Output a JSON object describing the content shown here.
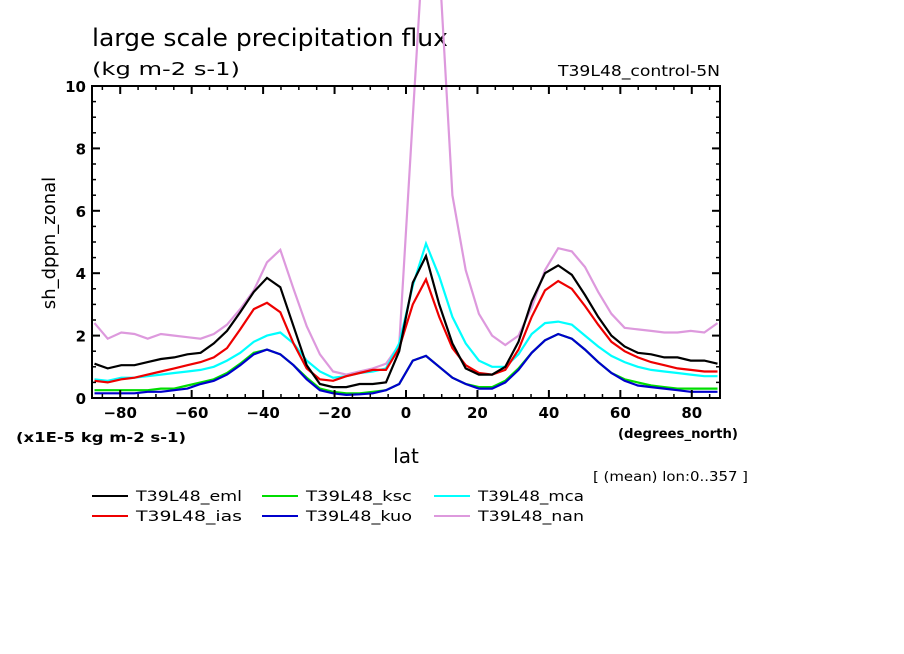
{
  "chart_data": {
    "type": "line",
    "title": "large scale precipitation flux",
    "subtitle": "(kg m-2 s-1)",
    "experiment_label": "T39L48_control-5N",
    "xlabel": "lat",
    "xunits": "(degrees_north)",
    "ylabel": "sh_dppn_zonal",
    "yscale_note": "(x1E-5 kg m-2 s-1)",
    "footnote": "[ (mean) lon:0..357 ]",
    "xlim": [
      -87.9,
      87.9
    ],
    "ylim": [
      0,
      10
    ],
    "xticks": [
      -80,
      -60,
      -40,
      -20,
      0,
      20,
      40,
      60,
      80
    ],
    "xtick_labels": [
      "-80",
      "-60",
      "-40",
      "-20",
      "0",
      "20",
      "40",
      "60",
      "80"
    ],
    "yticks": [
      0,
      2,
      4,
      6,
      8,
      10
    ],
    "ytick_labels": [
      "0",
      "2",
      "4",
      "6",
      "8",
      "10"
    ],
    "grid": false,
    "legend_position": "below-left",
    "x": [
      -87.2,
      -83.5,
      -79.7,
      -76.0,
      -72.3,
      -68.6,
      -64.9,
      -61.2,
      -57.5,
      -53.8,
      -50.1,
      -46.4,
      -42.6,
      -38.9,
      -35.2,
      -31.5,
      -27.8,
      -24.1,
      -20.4,
      -16.7,
      -13.0,
      -9.3,
      -5.6,
      -1.9,
      1.9,
      5.6,
      9.3,
      13.0,
      16.7,
      20.4,
      24.1,
      27.8,
      31.5,
      35.2,
      38.9,
      42.6,
      46.4,
      50.1,
      53.8,
      57.5,
      61.2,
      64.9,
      68.6,
      72.3,
      76.0,
      79.7,
      83.5,
      87.2
    ],
    "series": [
      {
        "name": "T39L48_eml",
        "color": "#000000",
        "values": [
          1.1,
          0.95,
          1.05,
          1.05,
          1.15,
          1.25,
          1.3,
          1.4,
          1.45,
          1.75,
          2.15,
          2.75,
          3.4,
          3.85,
          3.55,
          2.3,
          1.05,
          0.45,
          0.35,
          0.35,
          0.45,
          0.45,
          0.5,
          1.5,
          3.7,
          4.55,
          3.0,
          1.75,
          0.95,
          0.75,
          0.75,
          1.0,
          1.8,
          3.1,
          4.0,
          4.25,
          3.95,
          3.3,
          2.6,
          2.0,
          1.65,
          1.45,
          1.4,
          1.3,
          1.3,
          1.2,
          1.2,
          1.1
        ]
      },
      {
        "name": "T39L48_ias",
        "color": "#ee0000",
        "values": [
          0.55,
          0.5,
          0.6,
          0.65,
          0.75,
          0.85,
          0.95,
          1.05,
          1.15,
          1.3,
          1.6,
          2.2,
          2.85,
          3.05,
          2.75,
          1.75,
          0.95,
          0.6,
          0.55,
          0.7,
          0.8,
          0.9,
          0.9,
          1.6,
          3.0,
          3.8,
          2.6,
          1.6,
          1.05,
          0.8,
          0.75,
          0.9,
          1.55,
          2.6,
          3.45,
          3.75,
          3.5,
          2.95,
          2.35,
          1.8,
          1.5,
          1.3,
          1.15,
          1.05,
          0.95,
          0.9,
          0.85,
          0.85
        ]
      },
      {
        "name": "T39L48_ksc",
        "color": "#00dd00",
        "values": [
          0.25,
          0.25,
          0.25,
          0.25,
          0.25,
          0.3,
          0.3,
          0.4,
          0.5,
          0.6,
          0.8,
          1.1,
          1.45,
          1.55,
          1.4,
          1.05,
          0.65,
          0.3,
          0.2,
          0.15,
          0.15,
          0.2,
          0.25,
          0.45,
          1.2,
          1.35,
          1.0,
          0.65,
          0.45,
          0.35,
          0.35,
          0.55,
          0.95,
          1.45,
          1.85,
          2.05,
          1.9,
          1.55,
          1.15,
          0.8,
          0.6,
          0.5,
          0.4,
          0.35,
          0.3,
          0.3,
          0.3,
          0.3
        ]
      },
      {
        "name": "T39L48_kuo",
        "color": "#0000cc",
        "values": [
          0.15,
          0.15,
          0.15,
          0.15,
          0.2,
          0.2,
          0.25,
          0.3,
          0.45,
          0.55,
          0.75,
          1.05,
          1.4,
          1.55,
          1.4,
          1.05,
          0.6,
          0.25,
          0.15,
          0.1,
          0.12,
          0.15,
          0.25,
          0.45,
          1.2,
          1.35,
          1.0,
          0.65,
          0.45,
          0.3,
          0.3,
          0.5,
          0.9,
          1.45,
          1.85,
          2.05,
          1.9,
          1.55,
          1.15,
          0.8,
          0.55,
          0.4,
          0.35,
          0.3,
          0.25,
          0.2,
          0.2,
          0.2
        ]
      },
      {
        "name": "T39L48_mca",
        "color": "#00ffff",
        "values": [
          0.6,
          0.55,
          0.65,
          0.65,
          0.7,
          0.75,
          0.8,
          0.85,
          0.9,
          1.0,
          1.2,
          1.45,
          1.8,
          2.0,
          2.1,
          1.75,
          1.2,
          0.85,
          0.65,
          0.7,
          0.8,
          0.85,
          0.95,
          1.75,
          3.6,
          4.95,
          3.9,
          2.6,
          1.75,
          1.2,
          1.0,
          1.0,
          1.4,
          2.05,
          2.4,
          2.45,
          2.35,
          2.0,
          1.65,
          1.35,
          1.15,
          1.0,
          0.9,
          0.85,
          0.8,
          0.75,
          0.7,
          0.7
        ]
      },
      {
        "name": "T39L48_nan",
        "color": "#dd99dd",
        "values": [
          2.4,
          1.9,
          2.1,
          2.05,
          1.9,
          2.05,
          2.0,
          1.95,
          1.9,
          2.05,
          2.35,
          2.85,
          3.45,
          4.35,
          4.75,
          3.5,
          2.3,
          1.4,
          0.85,
          0.75,
          0.85,
          0.95,
          1.1,
          1.7,
          9.0,
          16.0,
          14.0,
          6.5,
          4.1,
          2.7,
          2.0,
          1.7,
          2.0,
          2.9,
          4.1,
          4.8,
          4.7,
          4.2,
          3.4,
          2.7,
          2.25,
          2.2,
          2.15,
          2.1,
          2.1,
          2.15,
          2.1,
          2.4
        ]
      }
    ]
  }
}
